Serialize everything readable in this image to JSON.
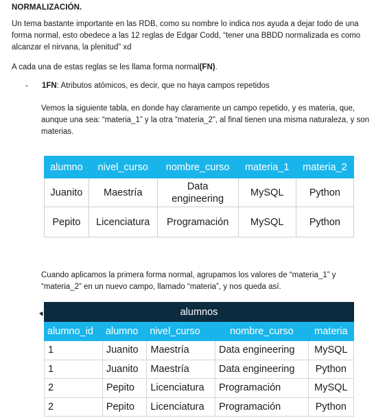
{
  "doc": {
    "title": "NORMALIZACIÓN.",
    "p1": "Un tema bastante importante en las RDB, como su nombre lo indica nos ayuda a dejar todo de una forma normal, esto obedece a las 12 reglas de Edgar Codd, “tener una BBDD normalizada es como alcanzar el nirvana, la plenitud” xd",
    "p2_prefix": "A cada una de estas reglas se les llama forma normal",
    "p2_bold": "(FN)",
    "p2_suffix": ".",
    "bullet_dash": "-",
    "bullet_bold": "1FN",
    "bullet_text": ": Atributos atómicos, es decir, que no haya campos repetidos",
    "p3": "Vemos la siguiente tabla, en donde hay claramente un campo repetido, y es materia, que, aunque una sea: “materia_1” y la otra “materia_2”, al final tienen una misma naturaleza, y son materias.",
    "p4": "Cuando aplicamos la primera forma normal, agrupamos los valores de “materia_1” y “materia_2” en un nuevo campo, llamado “materia”, y nos queda así."
  },
  "table1": {
    "headers": [
      "alumno",
      "nivel_curso",
      "nombre_curso",
      "materia_1",
      "materia_2"
    ],
    "rows": [
      [
        "Juanito",
        "Maestría",
        "Data engineering",
        "MySQL",
        "Python"
      ],
      [
        "Pepito",
        "Licenciatura",
        "Programación",
        "MySQL",
        "Python"
      ]
    ]
  },
  "table2": {
    "caption": "alumnos",
    "headers": [
      "alumno_id",
      "alumno",
      "nivel_curso",
      "nombre_curso",
      "materia"
    ],
    "rows": [
      [
        "1",
        "Juanito",
        "Maestría",
        "Data engineering",
        "MySQL"
      ],
      [
        "1",
        "Juanito",
        "Maestría",
        "Data engineering",
        "Python"
      ],
      [
        "2",
        "Pepito",
        "Licenciatura",
        "Programación",
        "MySQL"
      ],
      [
        "2",
        "Pepito",
        "Licenciatura",
        "Programación",
        "Python"
      ]
    ]
  },
  "colors": {
    "header_blue": "#19b5ea",
    "caption_navy": "#0d2b3e"
  }
}
